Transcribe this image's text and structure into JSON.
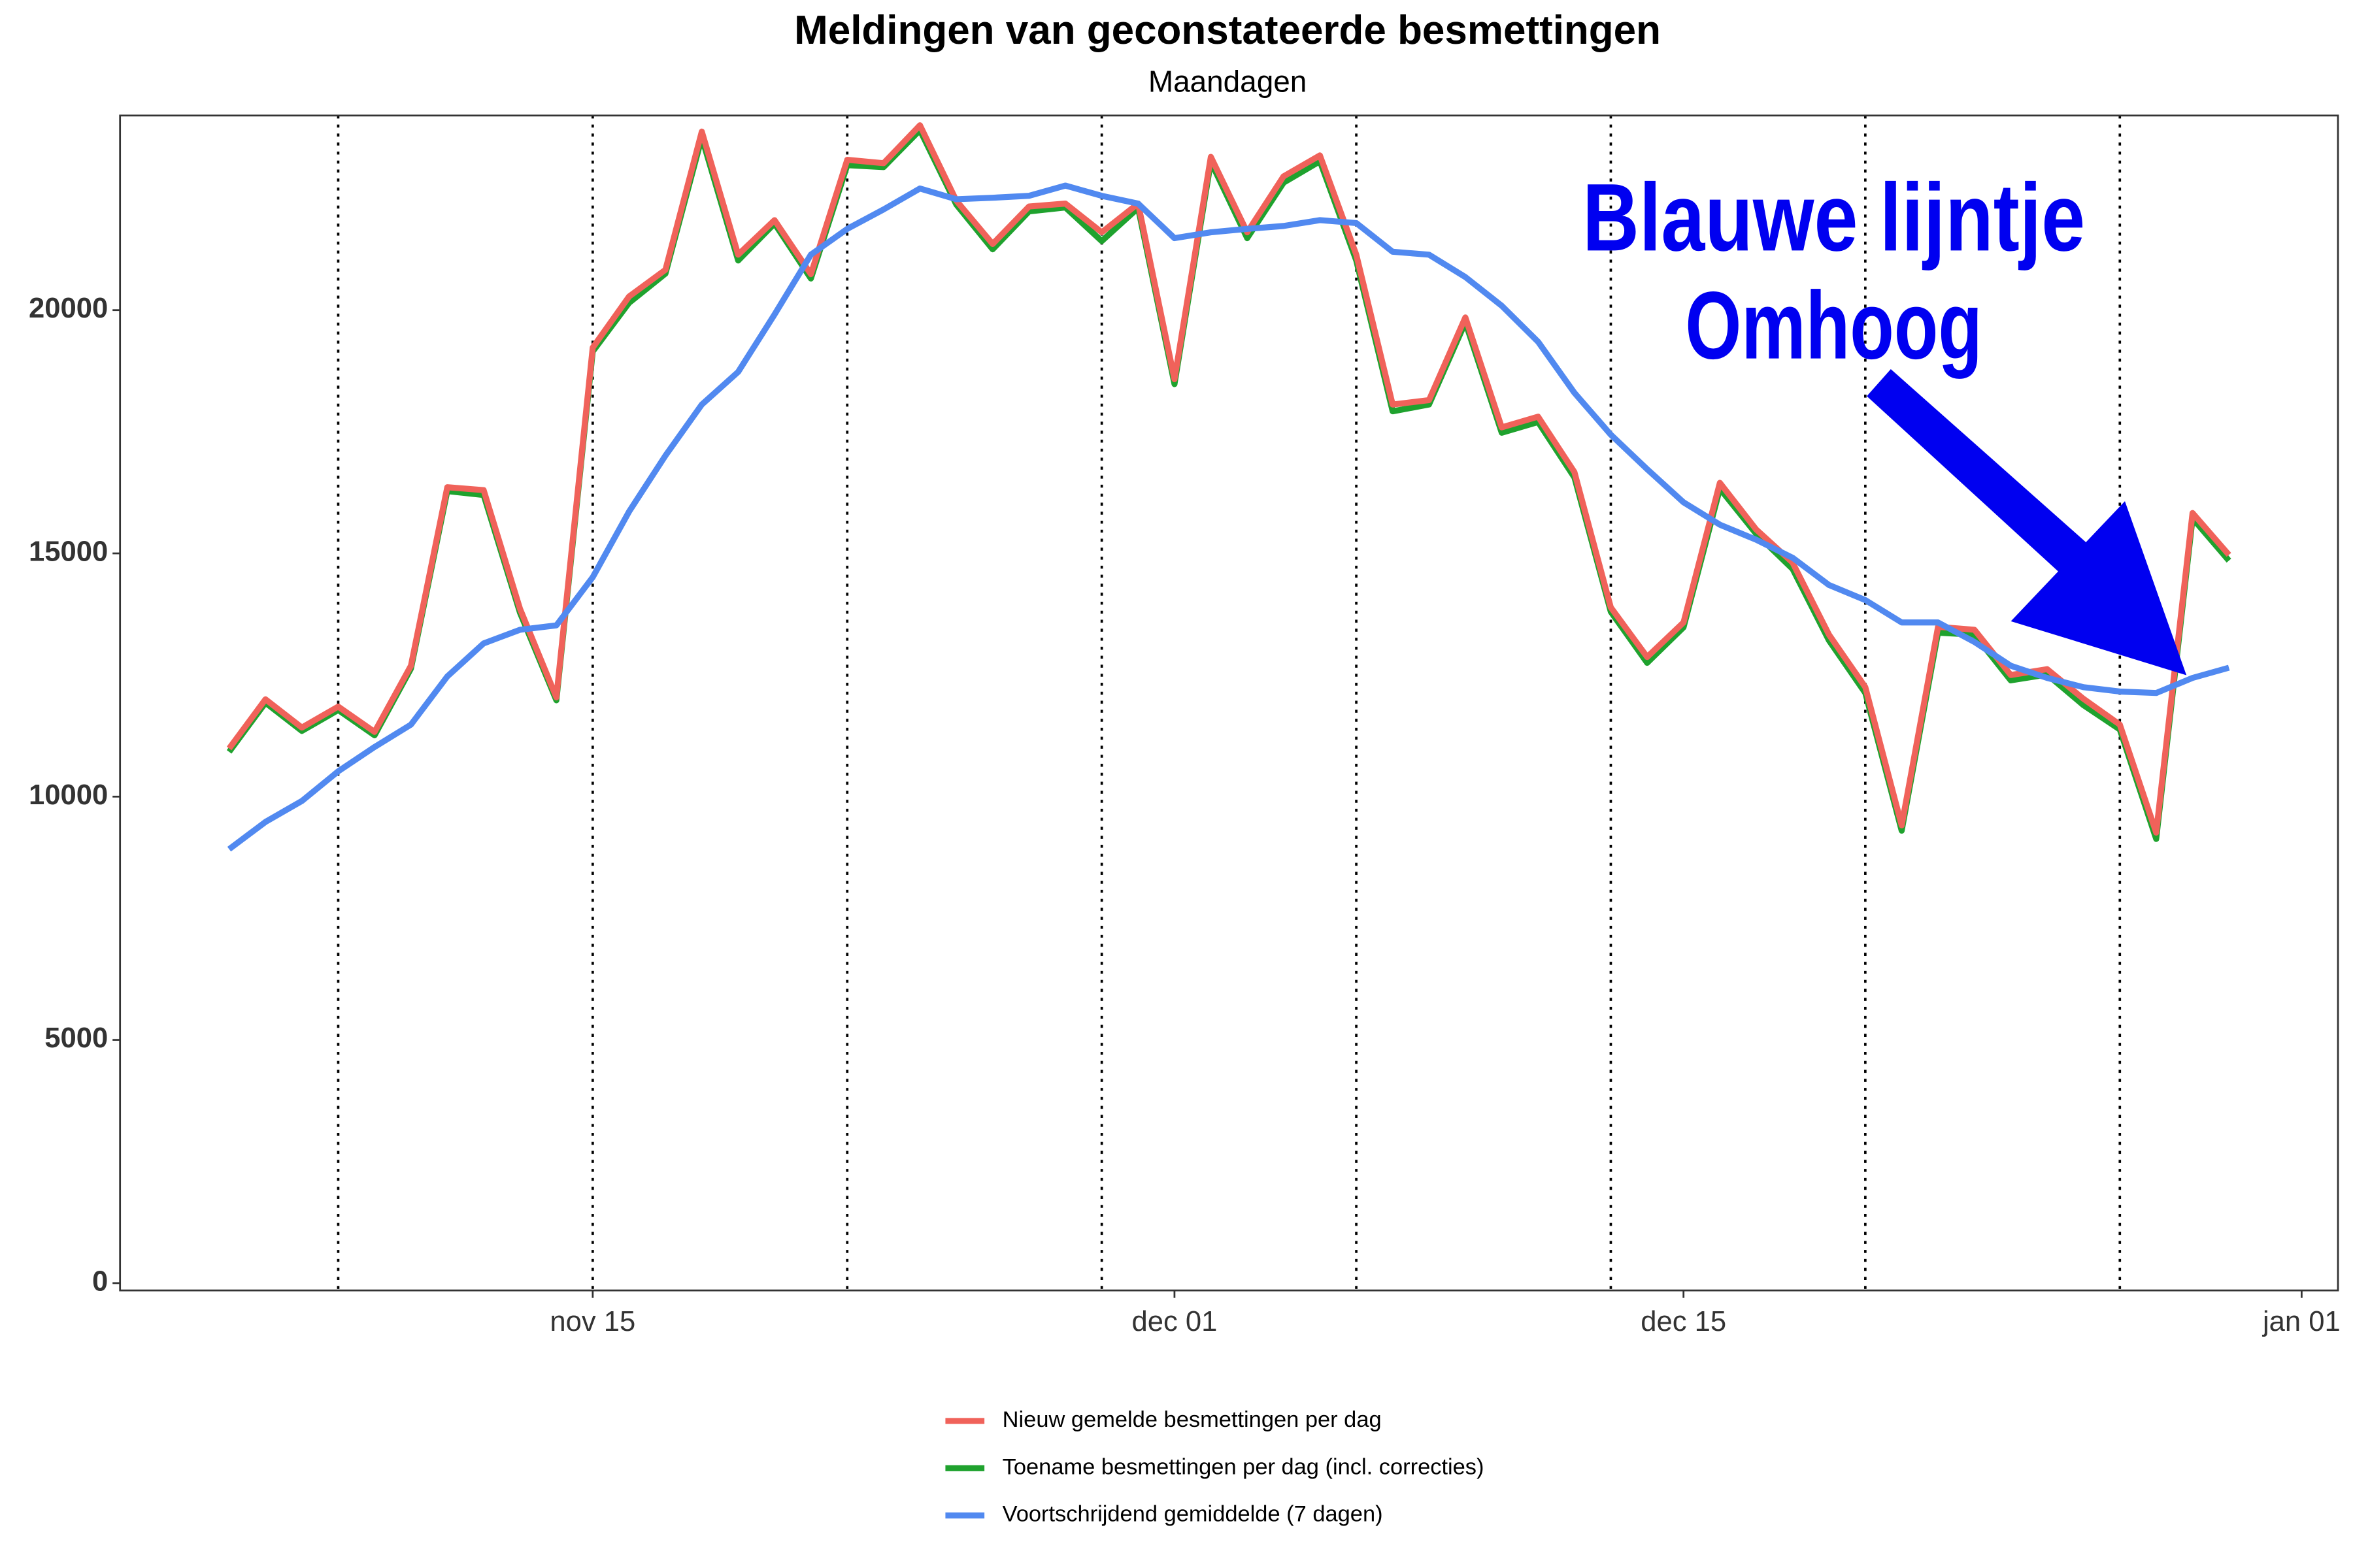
{
  "chart_data": {
    "type": "line",
    "title": "Meldingen van geconstateerde besmettingen",
    "subtitle": "Maandagen",
    "annotations": [
      "Blauwe lijntje",
      "Omhoog"
    ],
    "x": [
      "nov 05",
      "nov 06",
      "nov 07",
      "nov 08",
      "nov 09",
      "nov 10",
      "nov 11",
      "nov 12",
      "nov 13",
      "nov 14",
      "nov 15",
      "nov 16",
      "nov 17",
      "nov 18",
      "nov 19",
      "nov 20",
      "nov 21",
      "nov 22",
      "nov 23",
      "nov 24",
      "nov 25",
      "nov 26",
      "nov 27",
      "nov 28",
      "nov 29",
      "nov 30",
      "dec 01",
      "dec 02",
      "dec 03",
      "dec 04",
      "dec 05",
      "dec 06",
      "dec 07",
      "dec 08",
      "dec 09",
      "dec 10",
      "dec 11",
      "dec 12",
      "dec 13",
      "dec 14",
      "dec 15",
      "dec 16",
      "dec 17",
      "dec 18",
      "dec 19",
      "dec 20",
      "dec 21",
      "dec 22",
      "dec 23",
      "dec 24",
      "dec 25",
      "dec 26",
      "dec 27",
      "dec 28",
      "dec 29",
      "dec 30"
    ],
    "series": [
      {
        "name": "Nieuw gemelde besmettingen per dag",
        "color": "#f0625a",
        "values": [
          10990,
          12000,
          11420,
          11850,
          11330,
          12690,
          16360,
          16300,
          13860,
          12040,
          19230,
          20280,
          20830,
          23670,
          21140,
          21850,
          20740,
          23090,
          23020,
          23800,
          22250,
          21360,
          22130,
          22190,
          21600,
          22190,
          18580,
          23150,
          21600,
          22750,
          23180,
          21140,
          18060,
          18150,
          19850,
          17590,
          17810,
          16670,
          13890,
          12870,
          13580,
          16450,
          15490,
          14810,
          13330,
          12250,
          9410,
          13490,
          13430,
          12500,
          12620,
          12010,
          11480,
          9260,
          15830,
          14970
        ]
      },
      {
        "name": "Toename besmettingen per dag (incl. correcties)",
        "color": "#1fa22e",
        "values": [
          10920,
          11930,
          11350,
          11780,
          11260,
          12630,
          16280,
          16200,
          13780,
          11980,
          19150,
          20150,
          20750,
          23550,
          21020,
          21780,
          20650,
          22980,
          22940,
          23700,
          22170,
          21250,
          22030,
          22110,
          21420,
          22100,
          18480,
          23050,
          21480,
          22620,
          23060,
          21020,
          17920,
          18060,
          19750,
          17480,
          17700,
          16560,
          13800,
          12750,
          13480,
          16330,
          15400,
          14680,
          13210,
          12130,
          9300,
          13370,
          13330,
          12390,
          12510,
          11880,
          11380,
          9130,
          15720,
          14850
        ]
      },
      {
        "name": "Voortschrijdend gemiddelde (7 dagen)",
        "color": "#5189f0",
        "values": [
          8920,
          9480,
          9910,
          10520,
          11020,
          11480,
          12470,
          13150,
          13430,
          13520,
          14510,
          15860,
          17010,
          18060,
          18730,
          19910,
          21140,
          21670,
          22070,
          22500,
          22280,
          22310,
          22350,
          22560,
          22350,
          22190,
          21480,
          21600,
          21670,
          21730,
          21850,
          21790,
          21200,
          21140,
          20680,
          20090,
          19350,
          18300,
          17440,
          16730,
          16050,
          15590,
          15280,
          14910,
          14350,
          14040,
          13580,
          13580,
          13180,
          12690,
          12440,
          12250,
          12160,
          12130,
          12440,
          12650
        ]
      }
    ],
    "xlim": [
      "nov 02",
      "jan 02"
    ],
    "xticks": [
      "nov 15",
      "dec 01",
      "dec 15",
      "jan 01"
    ],
    "vlines": [
      "nov 08",
      "nov 15",
      "nov 22",
      "nov 29",
      "dec 06",
      "dec 13",
      "dec 20",
      "dec 27"
    ],
    "ylim": [
      -150,
      24000
    ],
    "yticks": [
      0,
      5000,
      10000,
      15000,
      20000
    ],
    "grid": false,
    "legend": "bottom"
  }
}
